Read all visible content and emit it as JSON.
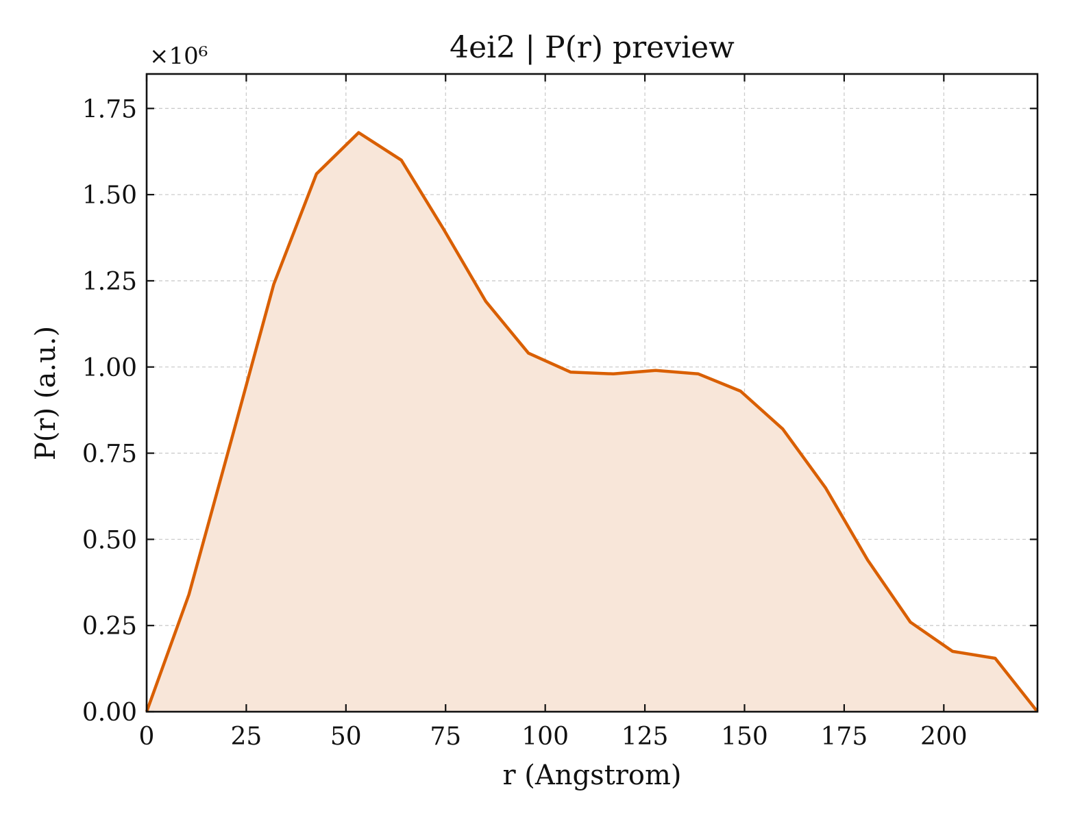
{
  "chart_data": {
    "type": "area",
    "title": "4ei2 | P(r) preview",
    "xlabel": "r (Angstrom)",
    "ylabel": "P(r) (a.u.)",
    "y_scale_note": "×10⁶",
    "xlim": [
      0,
      223.5
    ],
    "ylim": [
      0,
      1.85
    ],
    "x_ticks": [
      0,
      25,
      50,
      75,
      100,
      125,
      150,
      175,
      200
    ],
    "x_tick_labels": [
      "0",
      "25",
      "50",
      "75",
      "100",
      "125",
      "150",
      "175",
      "200"
    ],
    "y_ticks": [
      0,
      0.25,
      0.5,
      0.75,
      1.0,
      1.25,
      1.5,
      1.75
    ],
    "y_tick_labels": [
      "0.00",
      "0.25",
      "0.50",
      "0.75",
      "1.00",
      "1.25",
      "1.50",
      "1.75"
    ],
    "grid": true,
    "series": [
      {
        "color": "#d95f02",
        "fill_color": "#f8e6d9",
        "x": [
          0,
          10.6,
          21.3,
          31.9,
          42.6,
          53.2,
          63.9,
          74.5,
          85.1,
          95.8,
          106.4,
          117.1,
          127.7,
          138.4,
          149.0,
          159.6,
          170.3,
          180.9,
          191.6,
          202.2,
          212.9,
          223.5
        ],
        "y": [
          0,
          0.34,
          0.79,
          1.24,
          1.56,
          1.68,
          1.6,
          1.4,
          1.19,
          1.04,
          0.985,
          0.98,
          0.99,
          0.98,
          0.93,
          0.82,
          0.65,
          0.44,
          0.26,
          0.175,
          0.155,
          0
        ]
      }
    ]
  }
}
